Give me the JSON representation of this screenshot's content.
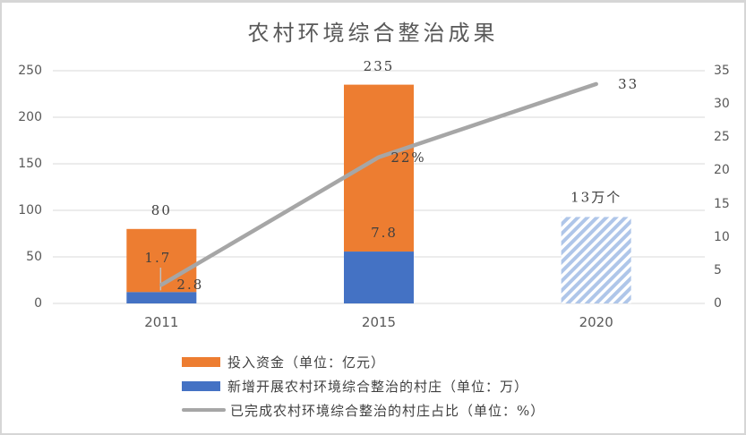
{
  "title": "农村环境综合整治成果",
  "chart_data": {
    "type": "combo",
    "title": "农村环境综合整治成果",
    "categories": [
      "2011",
      "2015",
      "2020"
    ],
    "series": [
      {
        "name": "投入资金（单位：亿元）",
        "type": "bar",
        "axis": "left",
        "color": "#ED7D31",
        "values": [
          80,
          235,
          null
        ],
        "data_labels": [
          "80",
          "235",
          null
        ]
      },
      {
        "name": "新增开展农村环境综合整治的村庄（单位：万）",
        "type": "bar",
        "axis": "right",
        "color": "#4472C4",
        "values": [
          1.7,
          7.8,
          null
        ],
        "data_labels": [
          "1.7",
          "7.8",
          null
        ],
        "planned": {
          "category": "2020",
          "value": 13,
          "label": "13万个",
          "fill": "diagonal-hatch",
          "hatch_color": "#AFC6E9"
        }
      },
      {
        "name": "已完成农村环境综合整治的村庄占比（单位：%）",
        "type": "line",
        "axis": "right",
        "color": "#A6A6A6",
        "values": [
          2.8,
          22,
          33
        ],
        "data_labels": [
          "2.8",
          "22%",
          "33"
        ]
      }
    ],
    "left_axis": {
      "min": 0,
      "max": 250,
      "ticks": [
        0,
        50,
        100,
        150,
        200,
        250
      ]
    },
    "right_axis": {
      "min": 0,
      "max": 35,
      "ticks": [
        0,
        5,
        10,
        15,
        20,
        25,
        30,
        35
      ]
    },
    "gridlines": true,
    "legend_position": "bottom-left"
  },
  "legend": {
    "items": [
      {
        "swatch": "bar",
        "color": "#ED7D31",
        "label": "投入资金（单位：亿元）"
      },
      {
        "swatch": "bar",
        "color": "#4472C4",
        "label": "新增开展农村环境综合整治的村庄（单位：万）"
      },
      {
        "swatch": "line",
        "color": "#A6A6A6",
        "label": "已完成农村环境综合整治的村庄占比（单位：%）"
      }
    ]
  },
  "colors": {
    "gridline": "#D9D9D9",
    "leader_line": "#BFBFBF",
    "axis_text": "#595959",
    "label_text": "#3F3F3F",
    "border": "#D6D6D6",
    "background": "#FFFFFF"
  }
}
